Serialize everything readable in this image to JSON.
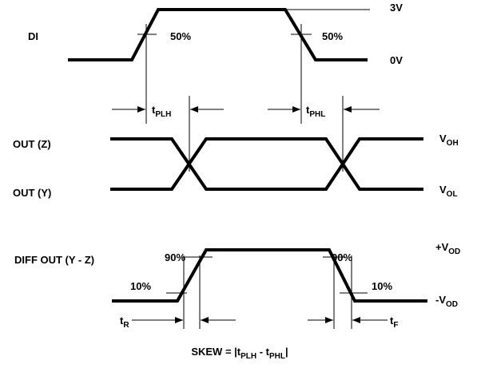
{
  "signals": {
    "di": "DI",
    "out_z": "OUT (Z)",
    "out_y": "OUT (Y)",
    "diff": "DIFF OUT (Y - Z)"
  },
  "levels": {
    "high": "3V",
    "low": "0V",
    "voh": {
      "base": "V",
      "sub": "OH"
    },
    "vol": {
      "base": "V",
      "sub": "OL"
    },
    "pvod": {
      "base": "+V",
      "sub": "OD"
    },
    "nvod": {
      "base": "-V",
      "sub": "OD"
    }
  },
  "thresholds": {
    "di_rise": "50%",
    "di_fall": "50%",
    "rise_90": "90%",
    "fall_90": "90%",
    "rise_10": "10%",
    "fall_10": "10%"
  },
  "timings": {
    "tplh": {
      "base": "t",
      "sub": "PLH"
    },
    "tphl": {
      "base": "t",
      "sub": "PHL"
    },
    "tr": {
      "base": "t",
      "sub": "R"
    },
    "tf": {
      "base": "t",
      "sub": "F"
    }
  },
  "formula": {
    "prefix": "SKEW = |t",
    "sub1": "PLH",
    "mid": " - t",
    "sub2": "PHL",
    "suffix": "|"
  }
}
